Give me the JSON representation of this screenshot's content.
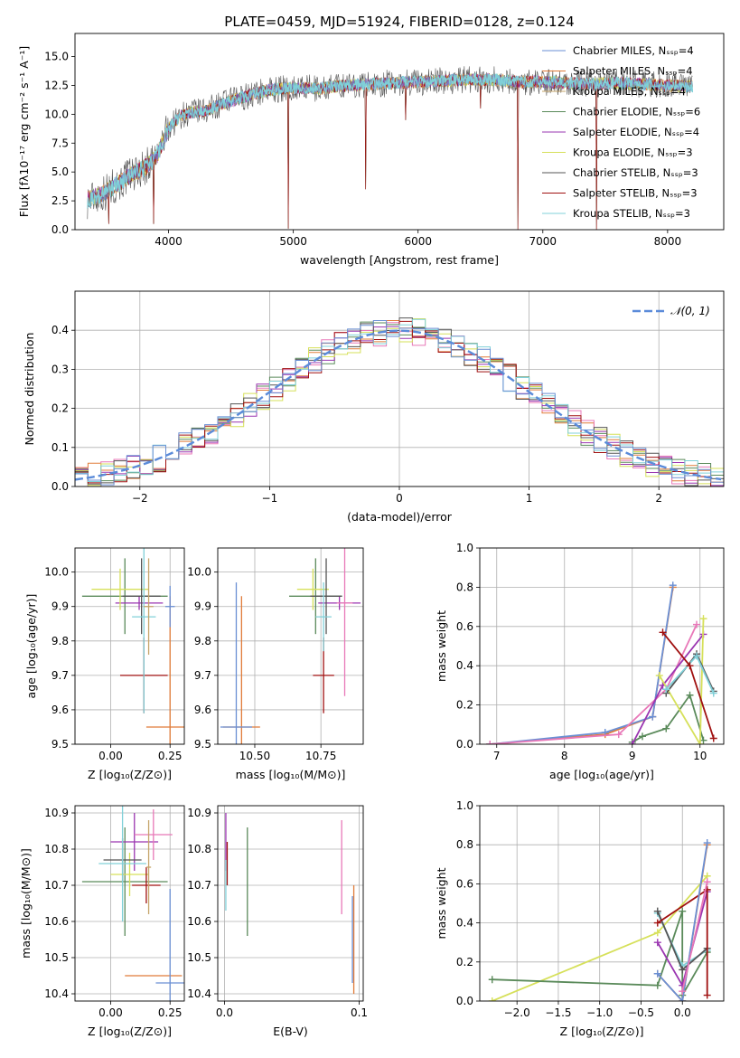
{
  "title": "PLATE=0459, MJD=51924, FIBERID=0128, z=0.124",
  "colors": {
    "chabrier_miles": "#6a8fd4",
    "salpeter_miles": "#e07b39",
    "kroupa_miles": "#c6a46a",
    "chabrier_elodie": "#5a8a5a",
    "salpeter_elodie": "#9a35b0",
    "kroupa_elodie": "#d6e05a",
    "chabrier_stelib": "#555555",
    "salpeter_stelib": "#a01010",
    "kroupa_stelib": "#80d0d8",
    "gauss": "#5b8bd9",
    "pink": "#e878b8",
    "teal": "#4a8a8a"
  },
  "chart_data": [
    {
      "id": "spectrum",
      "type": "line",
      "xlabel": "wavelength [Angstrom, rest frame]",
      "ylabel": "Flux [fλ10⁻¹⁷ erg cm⁻² s⁻¹ A⁻¹]",
      "xlim": [
        3250,
        8450
      ],
      "ylim": [
        0,
        17
      ],
      "xticks": [
        "4000",
        "5000",
        "6000",
        "7000",
        "8000"
      ],
      "yticks": [
        "0.0",
        "2.5",
        "5.0",
        "7.5",
        "10.0",
        "12.5",
        "15.0"
      ],
      "legend_position": "top-right",
      "legend": [
        "Chabrier MILES, N_SSP=4",
        "Salpeter MILES, N_SSP=4",
        "Kroupa MILES, N_SSP=4",
        "Chabrier ELODIE, N_SSP=6",
        "Salpeter ELODIE, N_SSP=4",
        "Kroupa ELODIE, N_SSP=3",
        "Chabrier STELIB, N_SSP=3",
        "Salpeter STELIB, N_SSP=3",
        "Kroupa STELIB, N_SSP=3"
      ],
      "continuum": {
        "x": [
          3350,
          3450,
          3600,
          3700,
          3800,
          3900,
          4000,
          4100,
          4200,
          4300,
          4400,
          4600,
          4800,
          5000,
          5200,
          5400,
          5600,
          5800,
          6000,
          6200,
          6400,
          6600,
          6800,
          7000,
          7200,
          7400,
          7600,
          7800,
          8000,
          8200
        ],
        "y": [
          2.6,
          3.0,
          4.0,
          4.8,
          5.3,
          6.2,
          8.8,
          9.9,
          10.2,
          10.3,
          10.8,
          11.5,
          12.1,
          12.3,
          12.2,
          12.5,
          12.6,
          12.7,
          12.8,
          12.9,
          13.0,
          13.0,
          12.8,
          12.8,
          12.7,
          12.6,
          12.7,
          12.6,
          12.5,
          12.4
        ]
      },
      "spikes": [
        [
          4960,
          0.1
        ],
        [
          5580,
          3.5
        ],
        [
          5900,
          9.5
        ],
        [
          6500,
          10.5
        ],
        [
          6800,
          0.0
        ],
        [
          7430,
          0.0
        ],
        [
          3520,
          0.5
        ],
        [
          3880,
          0.5
        ]
      ]
    },
    {
      "id": "residuals",
      "type": "bar",
      "xlabel": "(data-model)/error",
      "ylabel": "Normed distribution",
      "xlim": [
        -2.5,
        2.5
      ],
      "ylim": [
        0,
        0.5
      ],
      "xticks": [
        "−2",
        "−1",
        "0",
        "1",
        "2"
      ],
      "yticks": [
        "0.0",
        "0.1",
        "0.2",
        "0.3",
        "0.4"
      ],
      "legend_position": "top-right",
      "legend": [
        "𝒩(0, 1)"
      ],
      "gauss": {
        "mu": 0,
        "sigma": 1
      }
    },
    {
      "id": "z_age",
      "type": "scatter",
      "xlabel": "Z [log₁₀(Z/Z⊙)]",
      "ylabel": "age  [log₁₀(age/yr)]",
      "xlim": [
        -0.15,
        0.31
      ],
      "ylim": [
        9.5,
        10.07
      ],
      "xticks": [
        "0.00",
        "0.25"
      ],
      "yticks": [
        "9.5",
        "9.6",
        "9.7",
        "9.8",
        "9.9",
        "10.0"
      ],
      "points": [
        {
          "x": 0.06,
          "y": 9.93,
          "xerr": 0.18,
          "yerr": 0.11,
          "c": "chabrier_elodie"
        },
        {
          "x": 0.12,
          "y": 9.91,
          "xerr": 0.1,
          "yerr": 0.02,
          "c": "salpeter_elodie"
        },
        {
          "x": 0.04,
          "y": 9.95,
          "xerr": 0.12,
          "yerr": 0.06,
          "c": "kroupa_elodie"
        },
        {
          "x": 0.13,
          "y": 9.93,
          "xerr": 0.08,
          "yerr": 0.11,
          "c": "chabrier_stelib"
        },
        {
          "x": 0.14,
          "y": 9.7,
          "xerr": 0.1,
          "yerr": 0.11,
          "c": "salpeter_stelib"
        },
        {
          "x": 0.14,
          "y": 9.87,
          "xerr": 0.05,
          "yerr": 0.28,
          "c": "kroupa_stelib"
        },
        {
          "x": 0.25,
          "y": 9.55,
          "xerr": 0.1,
          "yerr": 0.38,
          "c": "salpeter_miles"
        },
        {
          "x": 0.25,
          "y": 9.9,
          "xerr": 0.02,
          "yerr": 0.06,
          "c": "chabrier_miles"
        },
        {
          "x": 0.16,
          "y": 9.9,
          "xerr": 0.02,
          "yerr": 0.14,
          "c": "kroupa_miles"
        }
      ]
    },
    {
      "id": "mass_age",
      "type": "scatter",
      "xlabel": "mass [log₁₀(M/M⊙)]",
      "ylabel": "",
      "xlim": [
        10.36,
        10.91
      ],
      "ylim": [
        9.5,
        10.07
      ],
      "xticks": [
        "10.50",
        "10.75"
      ],
      "yticks": [
        "9.5",
        "9.6",
        "9.7",
        "9.8",
        "9.9",
        "10.0"
      ],
      "points": [
        {
          "x": 10.73,
          "y": 9.93,
          "xerr": 0.1,
          "yerr": 0.11,
          "c": "chabrier_elodie"
        },
        {
          "x": 10.82,
          "y": 9.91,
          "xerr": 0.08,
          "yerr": 0.02,
          "c": "salpeter_elodie"
        },
        {
          "x": 10.72,
          "y": 9.95,
          "xerr": 0.06,
          "yerr": 0.06,
          "c": "kroupa_elodie"
        },
        {
          "x": 10.77,
          "y": 9.93,
          "xerr": 0.06,
          "yerr": 0.11,
          "c": "chabrier_stelib"
        },
        {
          "x": 10.76,
          "y": 9.7,
          "xerr": 0.04,
          "yerr": 0.11,
          "c": "salpeter_stelib"
        },
        {
          "x": 10.76,
          "y": 9.87,
          "xerr": 0.03,
          "yerr": 0.1,
          "c": "kroupa_stelib"
        },
        {
          "x": 10.45,
          "y": 9.55,
          "xerr": 0.07,
          "yerr": 0.38,
          "c": "salpeter_miles"
        },
        {
          "x": 10.43,
          "y": 9.55,
          "xerr": 0.06,
          "yerr": 0.42,
          "c": "chabrier_miles"
        },
        {
          "x": 10.84,
          "y": 9.91,
          "xerr": 0.03,
          "yerr": 0.27,
          "c": "pink"
        }
      ]
    },
    {
      "id": "age_weight",
      "type": "line",
      "xlabel": "age  [log₁₀(age/yr)]",
      "ylabel": "mass weight",
      "xlim": [
        6.75,
        10.35
      ],
      "ylim": [
        0,
        1
      ],
      "xticks": [
        "7",
        "8",
        "9",
        "10"
      ],
      "yticks": [
        "0.0",
        "0.2",
        "0.4",
        "0.6",
        "0.8",
        "1.0"
      ],
      "series": [
        {
          "c": "salpeter_miles",
          "x": [
            6.9,
            8.6,
            9.3,
            9.6
          ],
          "y": [
            0.0,
            0.05,
            0.14,
            0.8
          ]
        },
        {
          "c": "chabrier_miles",
          "x": [
            6.9,
            8.6,
            9.3,
            9.6
          ],
          "y": [
            0.0,
            0.06,
            0.14,
            0.81
          ]
        },
        {
          "c": "pink",
          "x": [
            6.9,
            8.8,
            9.5,
            9.95
          ],
          "y": [
            0.0,
            0.05,
            0.28,
            0.61
          ]
        },
        {
          "c": "chabrier_elodie",
          "x": [
            9.0,
            9.15,
            9.5,
            9.85,
            10.05
          ],
          "y": [
            0.01,
            0.04,
            0.08,
            0.25,
            0.02
          ]
        },
        {
          "c": "salpeter_elodie",
          "x": [
            9.0,
            9.45,
            10.05
          ],
          "y": [
            0.0,
            0.3,
            0.56
          ]
        },
        {
          "c": "kroupa_elodie",
          "x": [
            9.4,
            10.0,
            10.05
          ],
          "y": [
            0.35,
            0.0,
            0.64
          ]
        },
        {
          "c": "chabrier_stelib",
          "x": [
            9.5,
            9.95,
            10.2
          ],
          "y": [
            0.26,
            0.46,
            0.27
          ]
        },
        {
          "c": "kroupa_stelib",
          "x": [
            9.5,
            9.95,
            10.2
          ],
          "y": [
            0.28,
            0.45,
            0.26
          ]
        },
        {
          "c": "salpeter_stelib",
          "x": [
            9.45,
            9.85,
            10.2
          ],
          "y": [
            0.57,
            0.4,
            0.03
          ]
        }
      ]
    },
    {
      "id": "z_mass",
      "type": "scatter",
      "xlabel": "Z [log₁₀(Z/Z⊙)]",
      "ylabel": "mass [log₁₀(M/M⊙)]",
      "xlim": [
        -0.15,
        0.31
      ],
      "ylim": [
        10.38,
        10.92
      ],
      "xticks": [
        "0.00",
        "0.25"
      ],
      "yticks": [
        "10.4",
        "10.5",
        "10.6",
        "10.7",
        "10.8",
        "10.9"
      ],
      "points": [
        {
          "x": 0.06,
          "y": 10.71,
          "xerr": 0.18,
          "yerr": 0.15,
          "c": "chabrier_elodie"
        },
        {
          "x": 0.1,
          "y": 10.82,
          "xerr": 0.1,
          "yerr": 0.08,
          "c": "salpeter_elodie"
        },
        {
          "x": 0.08,
          "y": 10.73,
          "xerr": 0.08,
          "yerr": 0.06,
          "c": "kroupa_elodie"
        },
        {
          "x": 0.05,
          "y": 10.77,
          "xerr": 0.08,
          "yerr": 0.06,
          "c": "chabrier_stelib"
        },
        {
          "x": 0.15,
          "y": 10.7,
          "xerr": 0.06,
          "yerr": 0.05,
          "c": "salpeter_stelib"
        },
        {
          "x": 0.05,
          "y": 10.76,
          "xerr": 0.1,
          "yerr": 0.16,
          "c": "kroupa_stelib"
        },
        {
          "x": 0.18,
          "y": 10.84,
          "xerr": 0.08,
          "yerr": 0.07,
          "c": "pink"
        },
        {
          "x": 0.18,
          "y": 10.45,
          "xerr": 0.12,
          "yerr": 0.0,
          "c": "salpeter_miles"
        },
        {
          "x": 0.25,
          "y": 10.43,
          "xerr": 0.06,
          "yerr": 0.26,
          "c": "chabrier_miles"
        },
        {
          "x": 0.16,
          "y": 10.75,
          "xerr": 0.01,
          "yerr": 0.13,
          "c": "kroupa_miles"
        }
      ]
    },
    {
      "id": "ebv_mass",
      "type": "scatter",
      "xlabel": "E(B-V)",
      "ylabel": "",
      "xlim": [
        -0.005,
        0.103
      ],
      "ylim": [
        10.38,
        10.92
      ],
      "xticks": [
        "0.0",
        "0.1"
      ],
      "yticks": [
        "10.4",
        "10.5",
        "10.6",
        "10.7",
        "10.8",
        "10.9"
      ],
      "points": [
        {
          "x": 0.001,
          "y": 10.82,
          "xerr": 0.0,
          "yerr": 0.08,
          "c": "salpeter_elodie"
        },
        {
          "x": 0.002,
          "y": 10.76,
          "xerr": 0.0,
          "yerr": 0.06,
          "c": "salpeter_stelib"
        },
        {
          "x": 0.001,
          "y": 10.7,
          "xerr": 0.0,
          "yerr": 0.07,
          "c": "kroupa_stelib"
        },
        {
          "x": 0.017,
          "y": 10.71,
          "xerr": 0.0,
          "yerr": 0.15,
          "c": "chabrier_elodie"
        },
        {
          "x": 0.087,
          "y": 10.75,
          "xerr": 0.0,
          "yerr": 0.13,
          "c": "pink"
        },
        {
          "x": 0.096,
          "y": 10.55,
          "xerr": 0.0,
          "yerr": 0.15,
          "c": "salpeter_miles"
        },
        {
          "x": 0.095,
          "y": 10.55,
          "xerr": 0.0,
          "yerr": 0.12,
          "c": "chabrier_miles"
        }
      ]
    },
    {
      "id": "z_weight",
      "type": "line",
      "xlabel": "Z [log₁₀(Z/Z⊙)]",
      "ylabel": "mass weight",
      "xlim": [
        -2.45,
        0.5
      ],
      "ylim": [
        0,
        1
      ],
      "xticks": [
        "−2.0",
        "−1.5",
        "−1.0",
        "−0.5",
        "0.0"
      ],
      "yticks": [
        "0.0",
        "0.2",
        "0.4",
        "0.6",
        "0.8",
        "1.0"
      ],
      "series": [
        {
          "c": "kroupa_elodie",
          "x": [
            -2.3,
            -0.3,
            0.3
          ],
          "y": [
            0.0,
            0.35,
            0.64
          ]
        },
        {
          "c": "chabrier_elodie",
          "x": [
            -2.3,
            -0.3,
            0.0,
            0.0,
            0.3
          ],
          "y": [
            0.11,
            0.08,
            0.46,
            0.03,
            0.25
          ]
        },
        {
          "c": "salpeter_elodie",
          "x": [
            -0.3,
            0.0,
            0.3
          ],
          "y": [
            0.3,
            0.08,
            0.56
          ]
        },
        {
          "c": "kroupa_stelib",
          "x": [
            -0.3,
            0.0,
            0.3
          ],
          "y": [
            0.45,
            0.18,
            0.26
          ]
        },
        {
          "c": "chabrier_stelib",
          "x": [
            -0.3,
            0.0,
            0.3
          ],
          "y": [
            0.46,
            0.16,
            0.27
          ]
        },
        {
          "c": "salpeter_stelib",
          "x": [
            -0.3,
            0.3,
            0.3
          ],
          "y": [
            0.4,
            0.57,
            0.03
          ]
        },
        {
          "c": "salpeter_miles",
          "x": [
            -0.3,
            0.0,
            0.3
          ],
          "y": [
            0.14,
            0.0,
            0.8
          ]
        },
        {
          "c": "chabrier_miles",
          "x": [
            -0.3,
            0.0,
            0.3
          ],
          "y": [
            0.14,
            0.0,
            0.81
          ]
        },
        {
          "c": "pink",
          "x": [
            0.0,
            0.3
          ],
          "y": [
            0.05,
            0.61
          ]
        }
      ]
    }
  ]
}
